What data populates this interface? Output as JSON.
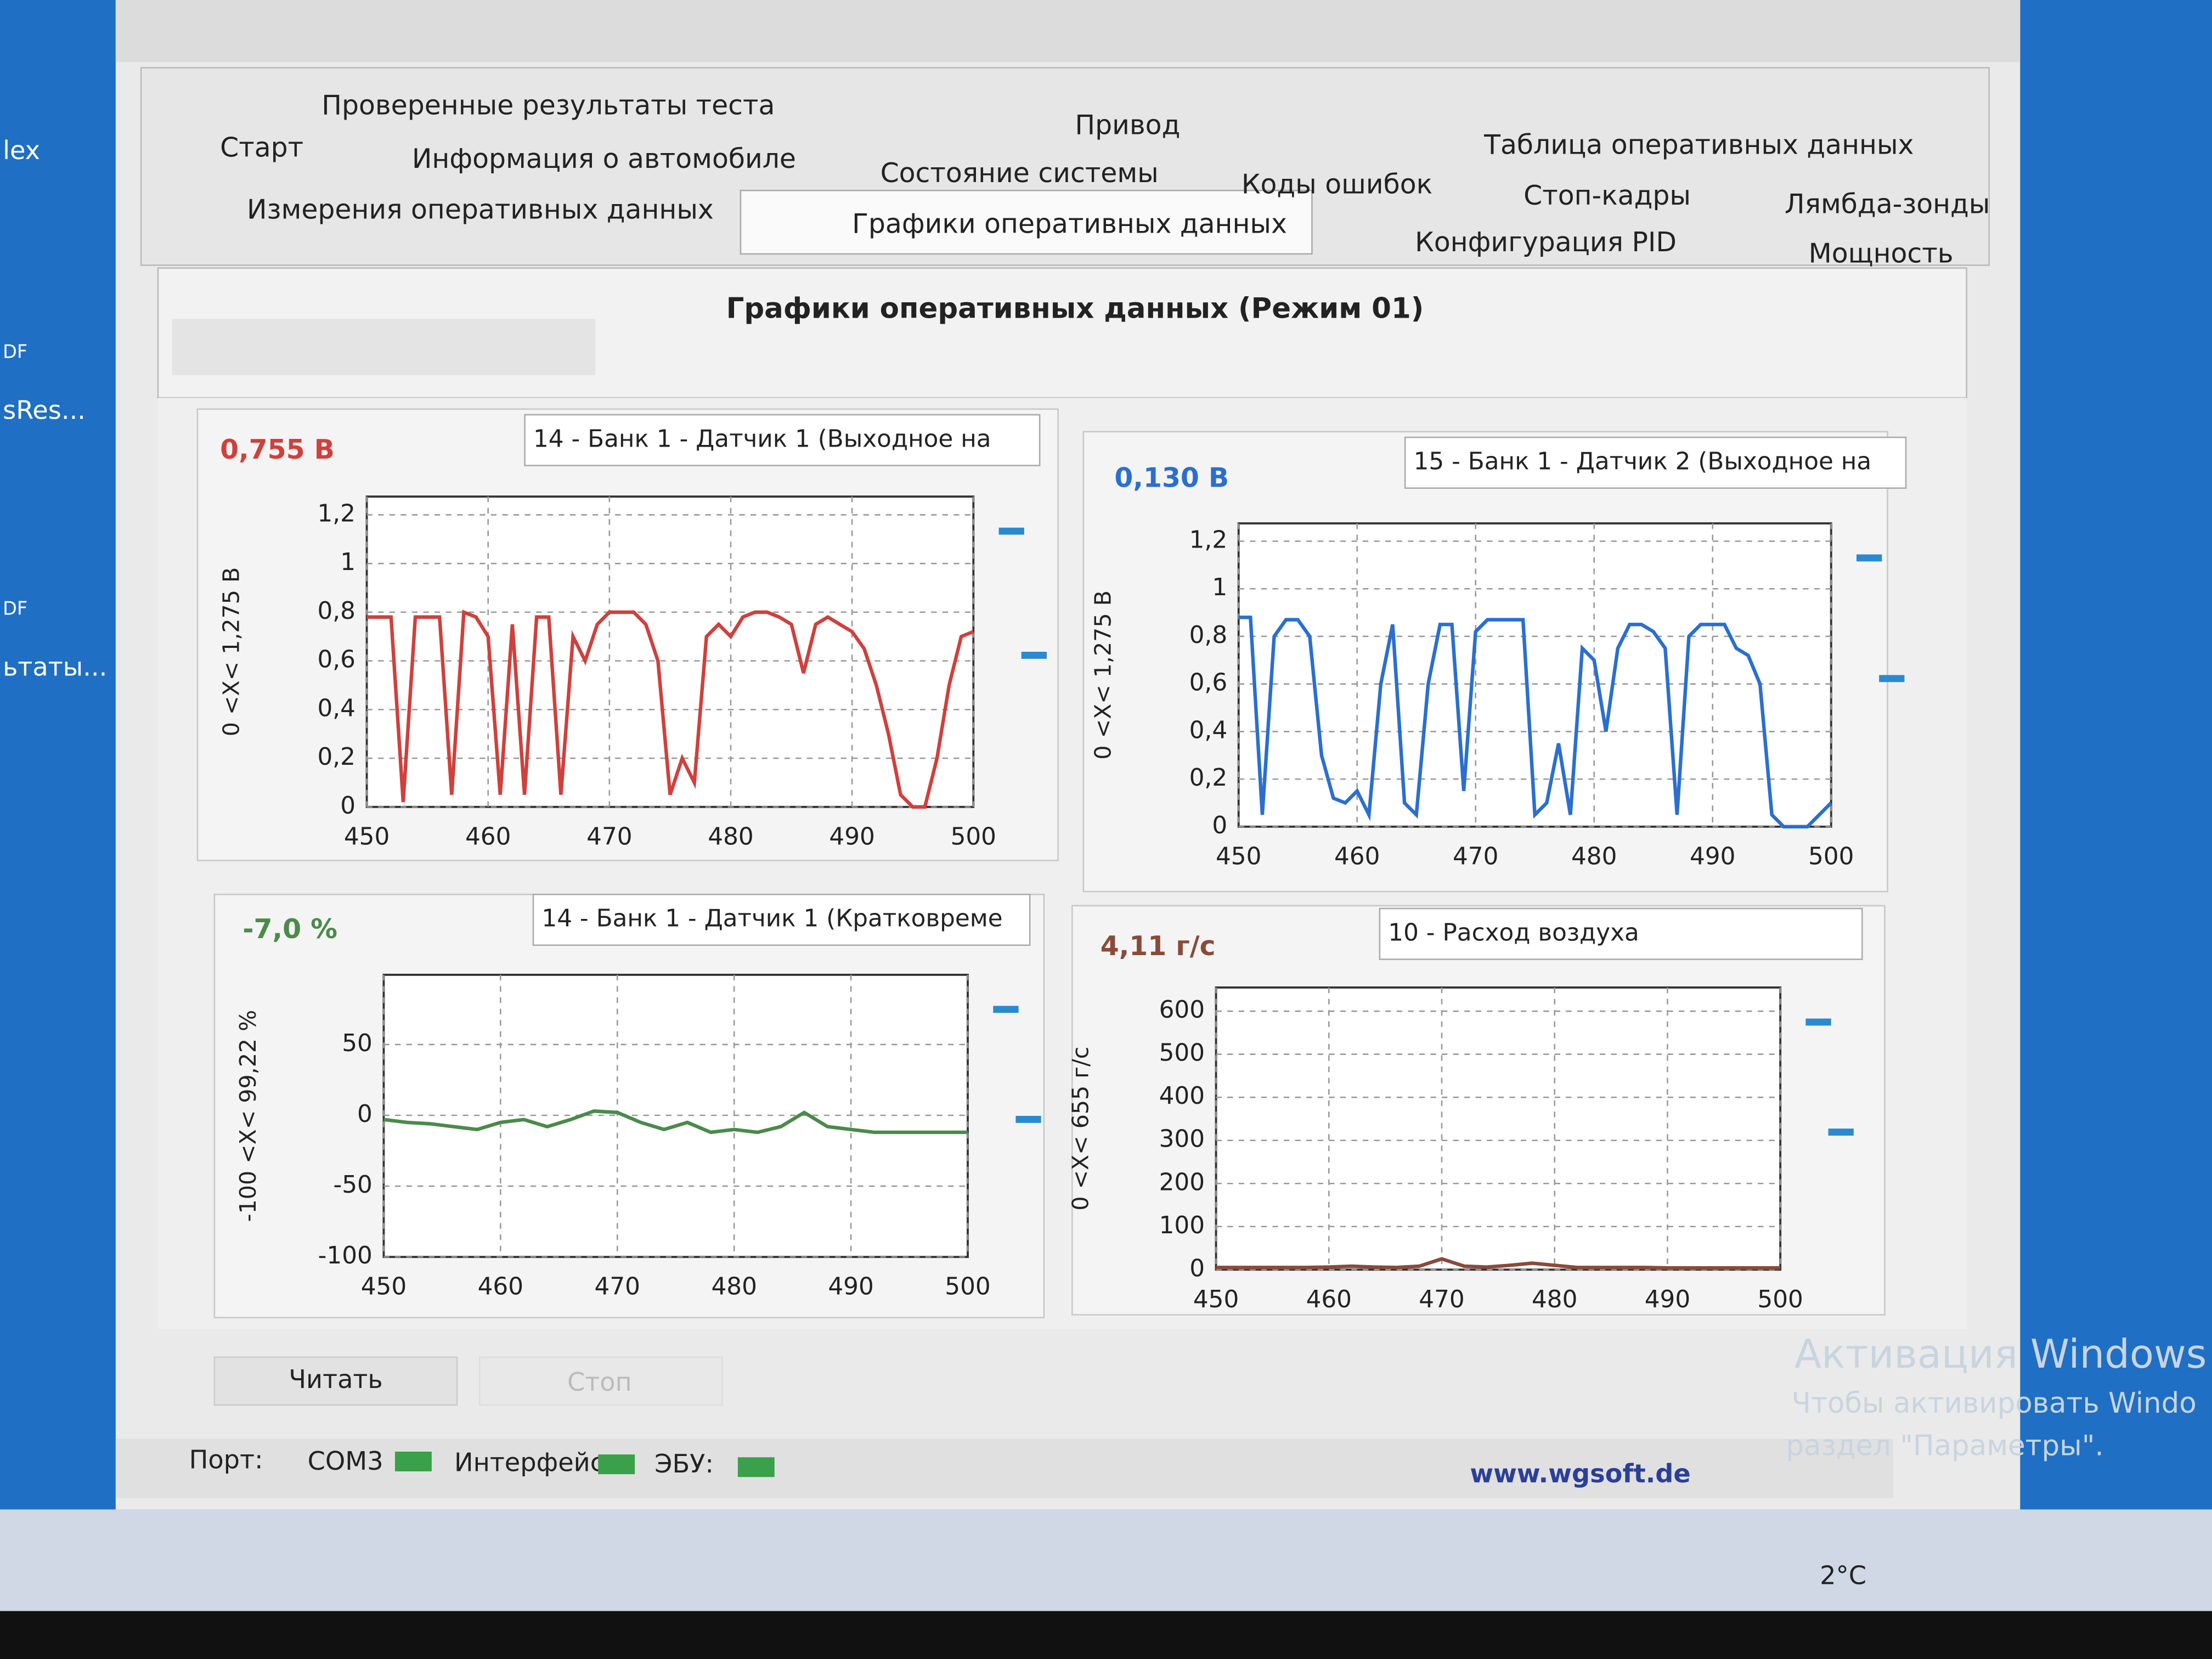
{
  "desktop": {
    "icons": [
      "lex",
      "DF",
      "sRes...",
      "DF",
      "ьтаты..."
    ]
  },
  "tabs": [
    "Проверенные результаты теста",
    "Привод",
    "Таблица оперативных данных",
    "Старт",
    "Информация о автомобиле",
    "Состояние системы",
    "Коды ошибок",
    "Стоп-кадры",
    "Лямбда-зонды",
    "Измерения оперативных данных",
    "Графики оперативных данных",
    "Конфигурация PID",
    "Мощность"
  ],
  "panel_title": "Графики оперативных данных (Режим 01)",
  "chart_data": [
    {
      "type": "line",
      "readout": "0,755 В",
      "selector": "14 - Банк 1 - Датчик 1 (Выходное на",
      "ylabel": "0  <X<  1,275 В",
      "color": "#d0403c",
      "xlim": [
        450,
        500
      ],
      "ylim": [
        0,
        1.275
      ],
      "xticks": [
        450,
        460,
        470,
        480,
        490,
        500
      ],
      "yticks": [
        0,
        {
          "value": 0.2,
          "label": "0,2"
        },
        {
          "value": 0.4,
          "label": "0,4"
        },
        {
          "value": 0.6,
          "label": "0,6"
        },
        {
          "value": 0.8,
          "label": "0,8"
        },
        1,
        {
          "value": 1.2,
          "label": "1,2"
        }
      ],
      "x": [
        450,
        451,
        452,
        453,
        454,
        455,
        456,
        457,
        458,
        459,
        460,
        461,
        462,
        463,
        464,
        465,
        466,
        467,
        468,
        469,
        470,
        471,
        472,
        473,
        474,
        475,
        476,
        477,
        478,
        479,
        480,
        481,
        482,
        483,
        484,
        485,
        486,
        487,
        488,
        489,
        490,
        491,
        492,
        493,
        494,
        495,
        496,
        497,
        498,
        499,
        500
      ],
      "values": [
        0.78,
        0.78,
        0.78,
        0.02,
        0.78,
        0.78,
        0.78,
        0.05,
        0.8,
        0.78,
        0.7,
        0.05,
        0.75,
        0.05,
        0.78,
        0.78,
        0.05,
        0.7,
        0.6,
        0.75,
        0.8,
        0.8,
        0.8,
        0.75,
        0.6,
        0.05,
        0.2,
        0.1,
        0.7,
        0.75,
        0.7,
        0.78,
        0.8,
        0.8,
        0.78,
        0.75,
        0.55,
        0.75,
        0.78,
        0.75,
        0.72,
        0.65,
        0.5,
        0.3,
        0.05,
        0,
        0,
        0.2,
        0.5,
        0.7,
        0.72
      ]
    },
    {
      "type": "line",
      "readout": "0,130 В",
      "selector": "15 - Банк 1 - Датчик 2 (Выходное на",
      "ylabel": "0  <X<  1,275 В",
      "color": "#2a6fd0",
      "xlim": [
        450,
        500
      ],
      "ylim": [
        0,
        1.275
      ],
      "xticks": [
        450,
        460,
        470,
        480,
        490,
        500
      ],
      "yticks": [
        0,
        {
          "value": 0.2,
          "label": "0,2"
        },
        {
          "value": 0.4,
          "label": "0,4"
        },
        {
          "value": 0.6,
          "label": "0,6"
        },
        {
          "value": 0.8,
          "label": "0,8"
        },
        1,
        {
          "value": 1.2,
          "label": "1,2"
        }
      ],
      "x": [
        450,
        451,
        452,
        453,
        454,
        455,
        456,
        457,
        458,
        459,
        460,
        461,
        462,
        463,
        464,
        465,
        466,
        467,
        468,
        469,
        470,
        471,
        472,
        473,
        474,
        475,
        476,
        477,
        478,
        479,
        480,
        481,
        482,
        483,
        484,
        485,
        486,
        487,
        488,
        489,
        490,
        491,
        492,
        493,
        494,
        495,
        496,
        497,
        498,
        499,
        500
      ],
      "values": [
        0.88,
        0.88,
        0.05,
        0.8,
        0.87,
        0.87,
        0.8,
        0.3,
        0.12,
        0.1,
        0.15,
        0.05,
        0.6,
        0.85,
        0.1,
        0.05,
        0.6,
        0.85,
        0.85,
        0.15,
        0.82,
        0.87,
        0.87,
        0.87,
        0.87,
        0.05,
        0.1,
        0.35,
        0.05,
        0.75,
        0.7,
        0.4,
        0.75,
        0.85,
        0.85,
        0.82,
        0.75,
        0.05,
        0.8,
        0.85,
        0.85,
        0.85,
        0.75,
        0.72,
        0.6,
        0.05,
        0,
        0,
        0,
        0.05,
        0.1
      ]
    },
    {
      "type": "line",
      "readout": "-7,0 %",
      "selector": "14 - Банк 1 - Датчик 1 (Кратковреме",
      "ylabel": "-100  <X<  99,22 %",
      "color": "#4a8a4a",
      "xlim": [
        450,
        500
      ],
      "ylim": [
        -100,
        99.22
      ],
      "xticks": [
        450,
        460,
        470,
        480,
        490,
        500
      ],
      "yticks": [
        -100,
        -50,
        0,
        50
      ],
      "x": [
        450,
        452,
        454,
        456,
        458,
        460,
        462,
        464,
        466,
        468,
        470,
        472,
        474,
        476,
        478,
        480,
        482,
        484,
        486,
        488,
        490,
        492,
        494,
        496,
        498,
        500
      ],
      "values": [
        -3,
        -5,
        -6,
        -8,
        -10,
        -5,
        -3,
        -8,
        -3,
        3,
        2,
        -5,
        -10,
        -5,
        -12,
        -10,
        -12,
        -8,
        2,
        -8,
        -10,
        -12,
        -12,
        -12,
        -12,
        -12
      ]
    },
    {
      "type": "line",
      "readout": "4,11 г/с",
      "selector": "10 - Расход воздуха",
      "ylabel": "0  <X<  655 г/с",
      "color": "#8a4a3a",
      "xlim": [
        450,
        500
      ],
      "ylim": [
        0,
        655
      ],
      "xticks": [
        450,
        460,
        470,
        480,
        490,
        500
      ],
      "yticks": [
        0,
        100,
        200,
        300,
        400,
        500,
        600
      ],
      "x": [
        450,
        452,
        454,
        456,
        458,
        460,
        462,
        464,
        466,
        468,
        470,
        472,
        474,
        476,
        478,
        480,
        482,
        484,
        486,
        488,
        490,
        492,
        494,
        496,
        498,
        500
      ],
      "values": [
        5,
        5,
        5,
        5,
        5,
        6,
        8,
        6,
        5,
        8,
        25,
        8,
        6,
        10,
        15,
        10,
        5,
        5,
        5,
        5,
        4,
        4,
        4,
        4,
        4,
        4
      ]
    }
  ],
  "buttons": [
    "Читать",
    "Стоп"
  ],
  "status": {
    "port_label": "Порт:",
    "port": "COM3",
    "interface": "Интерфейс:",
    "ecu": "ЭБУ:",
    "site": "www.wgsoft.de"
  },
  "activation": [
    "Активация Windows",
    "Чтобы активировать Windo",
    "раздел \"Параметры\"."
  ],
  "weather": "2°C"
}
